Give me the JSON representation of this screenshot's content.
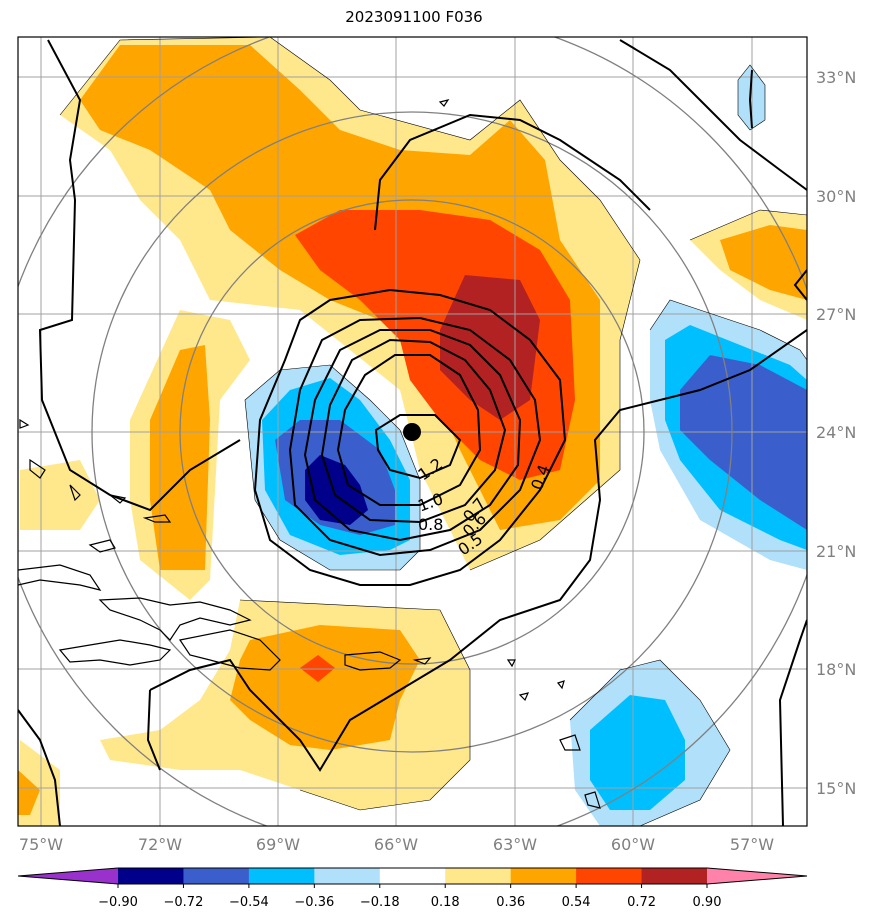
{
  "title": "2023091100 F036",
  "map": {
    "lat_labels": [
      "33°N",
      "30°N",
      "27°N",
      "24°N",
      "21°N",
      "18°N",
      "15°N"
    ],
    "lon_labels": [
      "75°W",
      "72°W",
      "69°W",
      "66°W",
      "63°W",
      "60°W",
      "57°W"
    ],
    "storm_center": {
      "lon": -65.7,
      "lat": 24.0
    },
    "contour_labels": [
      "1.2",
      "1.0",
      "0.8",
      "0.7",
      "0.6",
      "0.5",
      "0.4"
    ]
  },
  "colorbar": {
    "ticks": [
      "−0.90",
      "−0.72",
      "−0.54",
      "−0.36",
      "−0.18",
      "0.18",
      "0.36",
      "0.54",
      "0.72",
      "0.90"
    ],
    "colors": [
      "#9932cc",
      "#00008b",
      "#3a5fcd",
      "#00bfff",
      "#b0e0fa",
      "#ffffff",
      "#ffe88c",
      "#ffa500",
      "#ff4500",
      "#b22222",
      "#ff82ab"
    ]
  }
}
